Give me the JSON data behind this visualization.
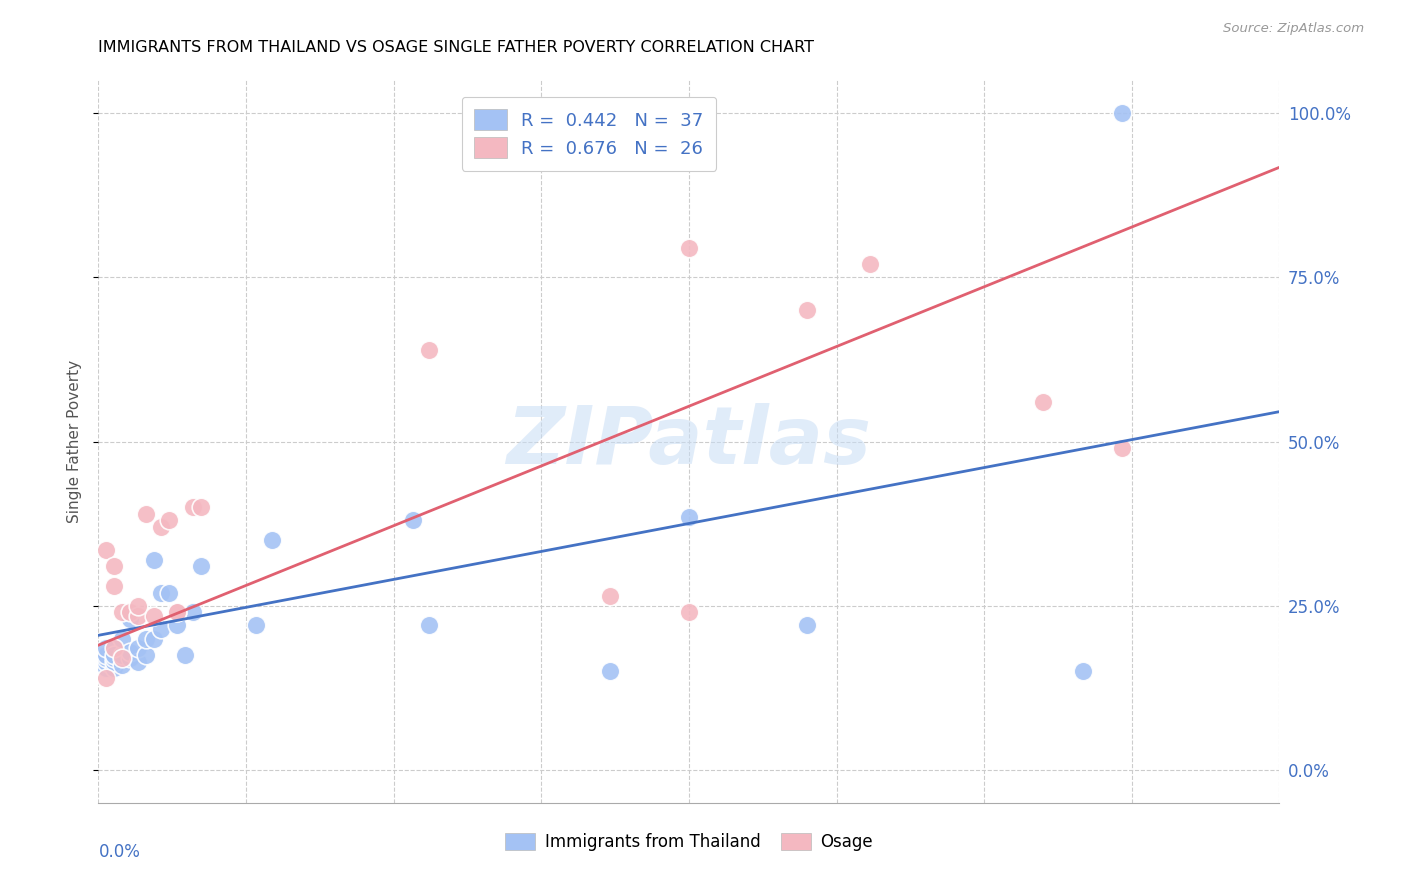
{
  "title": "IMMIGRANTS FROM THAILAND VS OSAGE SINGLE FATHER POVERTY CORRELATION CHART",
  "source": "Source: ZipAtlas.com",
  "ylabel": "Single Father Poverty",
  "ytick_positions": [
    0.0,
    0.25,
    0.5,
    0.75,
    1.0
  ],
  "ytick_labels": [
    "0.0%",
    "25.0%",
    "50.0%",
    "75.0%",
    "100.0%"
  ],
  "xrange": [
    0.0,
    0.15
  ],
  "yrange": [
    -0.05,
    1.05
  ],
  "color_blue": "#a4c2f4",
  "color_pink": "#f4b8c1",
  "color_blue_dark": "#4472c4",
  "color_pink_dark": "#e06070",
  "watermark": "ZIPatlas",
  "blue_R": "0.442",
  "blue_N": "37",
  "pink_R": "0.676",
  "pink_N": "26",
  "blue_points_x": [
    0.001,
    0.001,
    0.001,
    0.001,
    0.001,
    0.002,
    0.002,
    0.002,
    0.002,
    0.003,
    0.003,
    0.003,
    0.004,
    0.004,
    0.004,
    0.005,
    0.005,
    0.006,
    0.006,
    0.007,
    0.007,
    0.008,
    0.008,
    0.009,
    0.01,
    0.011,
    0.012,
    0.013,
    0.02,
    0.022,
    0.04,
    0.042,
    0.065,
    0.075,
    0.09,
    0.125,
    0.13
  ],
  "blue_points_y": [
    0.155,
    0.165,
    0.17,
    0.175,
    0.185,
    0.155,
    0.165,
    0.17,
    0.175,
    0.16,
    0.175,
    0.2,
    0.17,
    0.18,
    0.23,
    0.165,
    0.185,
    0.175,
    0.2,
    0.2,
    0.32,
    0.215,
    0.27,
    0.27,
    0.22,
    0.175,
    0.24,
    0.31,
    0.22,
    0.35,
    0.38,
    0.22,
    0.15,
    0.385,
    0.22,
    0.15,
    1.0
  ],
  "pink_points_x": [
    0.001,
    0.001,
    0.002,
    0.002,
    0.002,
    0.003,
    0.003,
    0.004,
    0.005,
    0.005,
    0.006,
    0.007,
    0.008,
    0.009,
    0.01,
    0.01,
    0.012,
    0.013,
    0.042,
    0.065,
    0.075,
    0.075,
    0.09,
    0.098,
    0.12,
    0.13
  ],
  "pink_points_y": [
    0.14,
    0.335,
    0.185,
    0.28,
    0.31,
    0.17,
    0.24,
    0.24,
    0.235,
    0.25,
    0.39,
    0.235,
    0.37,
    0.38,
    0.24,
    0.24,
    0.4,
    0.4,
    0.64,
    0.265,
    0.24,
    0.795,
    0.7,
    0.77,
    0.56,
    0.49
  ],
  "blue_intercept": 0.205,
  "blue_slope": 2.27,
  "pink_intercept": 0.19,
  "pink_slope": 4.85
}
